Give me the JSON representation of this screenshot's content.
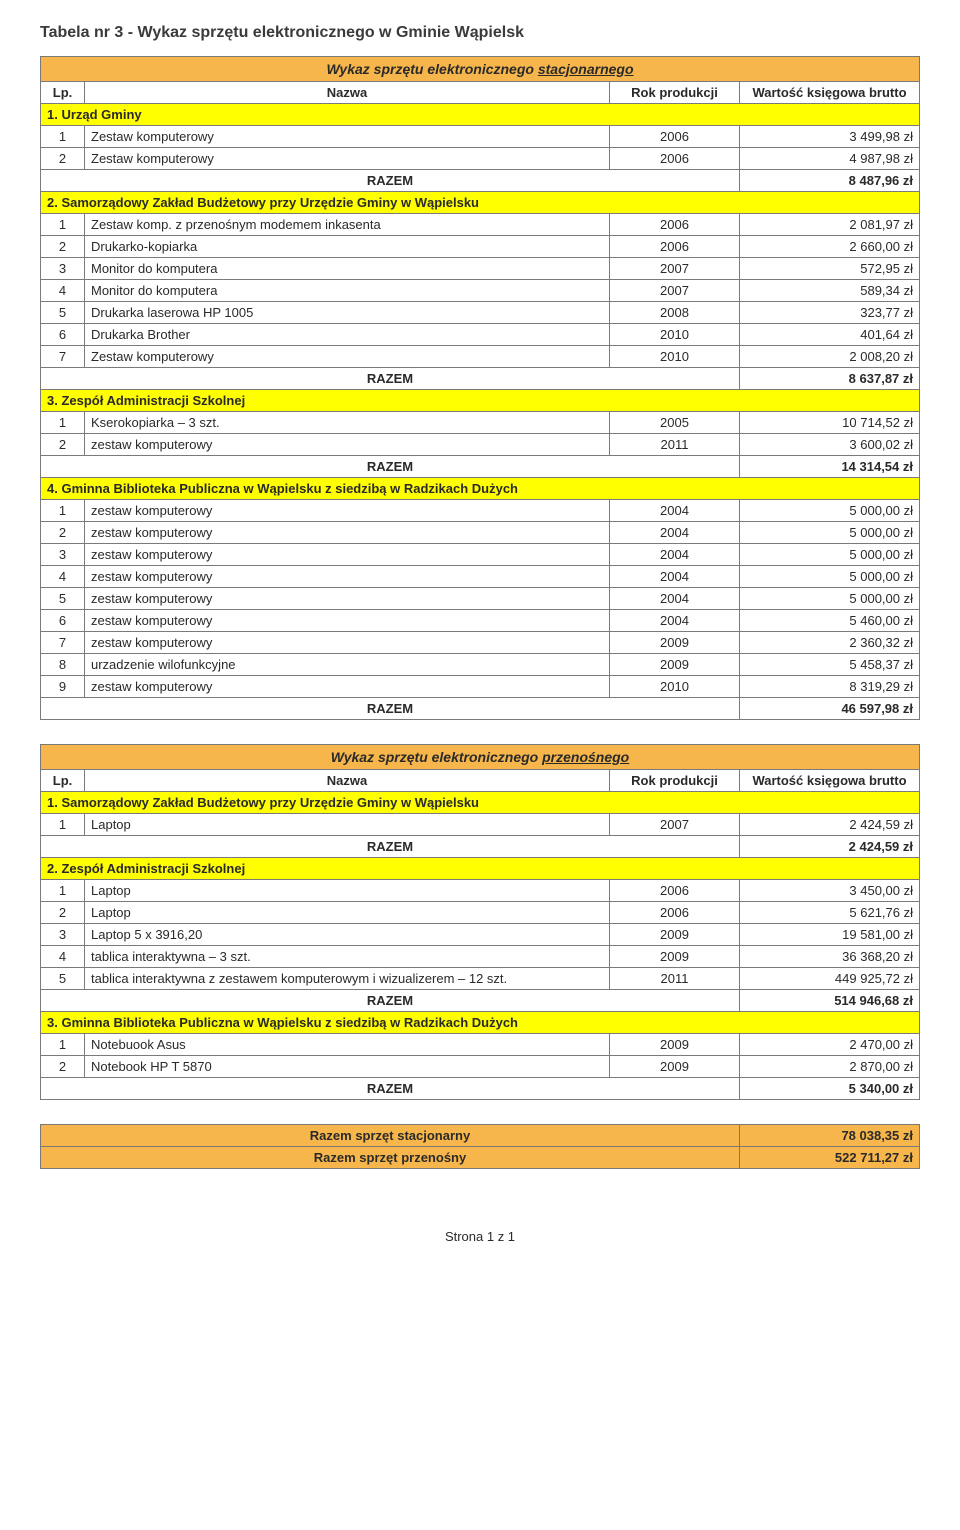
{
  "page": {
    "title": "Tabela nr 3 - Wykaz sprzętu elektronicznego w Gminie Wąpielsk",
    "footer": "Strona 1 z 1"
  },
  "table1": {
    "header_prefix": "Wykaz sprzętu elektronicznego ",
    "header_underlined": "stacjonarnego",
    "cols": {
      "lp": "Lp.",
      "name": "Nazwa",
      "year": "Rok produkcji",
      "val": "Wartość księgowa brutto"
    },
    "razem_label": "RAZEM",
    "sections": [
      {
        "title": "1. Urząd Gminy",
        "rows": [
          {
            "lp": "1",
            "name": "Zestaw komputerowy",
            "year": "2006",
            "val": "3 499,98 zł"
          },
          {
            "lp": "2",
            "name": "Zestaw komputerowy",
            "year": "2006",
            "val": "4 987,98 zł"
          }
        ],
        "razem": "8 487,96 zł"
      },
      {
        "title": "2. Samorządowy Zakład Budżetowy przy Urzędzie Gminy w Wąpielsku",
        "rows": [
          {
            "lp": "1",
            "name": "Zestaw komp. z przenośnym modemem inkasenta",
            "year": "2006",
            "val": "2 081,97 zł"
          },
          {
            "lp": "2",
            "name": "Drukarko-kopiarka",
            "year": "2006",
            "val": "2 660,00 zł"
          },
          {
            "lp": "3",
            "name": "Monitor do komputera",
            "year": "2007",
            "val": "572,95 zł"
          },
          {
            "lp": "4",
            "name": "Monitor do komputera",
            "year": "2007",
            "val": "589,34 zł"
          },
          {
            "lp": "5",
            "name": "Drukarka laserowa HP 1005",
            "year": "2008",
            "val": "323,77 zł"
          },
          {
            "lp": "6",
            "name": "Drukarka Brother",
            "year": "2010",
            "val": "401,64 zł"
          },
          {
            "lp": "7",
            "name": "Zestaw komputerowy",
            "year": "2010",
            "val": "2 008,20 zł"
          }
        ],
        "razem": "8 637,87 zł"
      },
      {
        "title": "3. Zespół Administracji Szkolnej",
        "rows": [
          {
            "lp": "1",
            "name": "Kserokopiarka – 3 szt.",
            "year": "2005",
            "val": "10 714,52 zł"
          },
          {
            "lp": "2",
            "name": "zestaw komputerowy",
            "year": "2011",
            "val": "3 600,02 zł"
          }
        ],
        "razem": "14 314,54 zł"
      },
      {
        "title": "4. Gminna Biblioteka Publiczna w Wąpielsku z siedzibą w Radzikach Dużych",
        "rows": [
          {
            "lp": "1",
            "name": "zestaw komputerowy",
            "year": "2004",
            "val": "5 000,00 zł"
          },
          {
            "lp": "2",
            "name": "zestaw komputerowy",
            "year": "2004",
            "val": "5 000,00 zł"
          },
          {
            "lp": "3",
            "name": "zestaw komputerowy",
            "year": "2004",
            "val": "5 000,00 zł"
          },
          {
            "lp": "4",
            "name": "zestaw komputerowy",
            "year": "2004",
            "val": "5 000,00 zł"
          },
          {
            "lp": "5",
            "name": "zestaw komputerowy",
            "year": "2004",
            "val": "5 000,00 zł"
          },
          {
            "lp": "6",
            "name": "zestaw komputerowy",
            "year": "2004",
            "val": "5 460,00 zł"
          },
          {
            "lp": "7",
            "name": "zestaw komputerowy",
            "year": "2009",
            "val": "2 360,32 zł"
          },
          {
            "lp": "8",
            "name": "urzadzenie wilofunkcyjne",
            "year": "2009",
            "val": "5 458,37 zł"
          },
          {
            "lp": "9",
            "name": "zestaw komputerowy",
            "year": "2010",
            "val": "8 319,29 zł"
          }
        ],
        "razem": "46 597,98 zł"
      }
    ]
  },
  "table2": {
    "header_prefix": "Wykaz sprzętu elektronicznego ",
    "header_underlined": "przenośnego",
    "cols": {
      "lp": "Lp.",
      "name": "Nazwa",
      "year": "Rok produkcji",
      "val": "Wartość księgowa brutto"
    },
    "razem_label": "RAZEM",
    "sections": [
      {
        "title": "1. Samorządowy Zakład Budżetowy przy Urzędzie Gminy w Wąpielsku",
        "rows": [
          {
            "lp": "1",
            "name": "Laptop",
            "year": "2007",
            "val": "2 424,59 zł"
          }
        ],
        "razem": "2 424,59 zł"
      },
      {
        "title": "2. Zespół Administracji Szkolnej",
        "rows": [
          {
            "lp": "1",
            "name": "Laptop",
            "year": "2006",
            "val": "3 450,00 zł"
          },
          {
            "lp": "2",
            "name": "Laptop",
            "year": "2006",
            "val": "5 621,76 zł"
          },
          {
            "lp": "3",
            "name": "Laptop 5 x 3916,20",
            "year": "2009",
            "val": "19 581,00 zł"
          },
          {
            "lp": "4",
            "name": "tablica interaktywna – 3 szt.",
            "year": "2009",
            "val": "36 368,20 zł"
          },
          {
            "lp": "5",
            "name": "tablica interaktywna z zestawem komputerowym i wizualizerem – 12 szt.",
            "year": "2011",
            "val": "449 925,72 zł"
          }
        ],
        "razem": "514 946,68 zł"
      },
      {
        "title": "3. Gminna Biblioteka Publiczna w Wąpielsku z siedzibą w Radzikach Dużych",
        "rows": [
          {
            "lp": "1",
            "name": "Notebuook Asus",
            "year": "2009",
            "val": "2 470,00 zł"
          },
          {
            "lp": "2",
            "name": "Notebook HP T 5870",
            "year": "2009",
            "val": "2 870,00 zł"
          }
        ],
        "razem": "5 340,00 zł"
      }
    ]
  },
  "summary": {
    "rows": [
      {
        "label": "Razem sprzęt stacjonarny",
        "val": "78 038,35 zł"
      },
      {
        "label": "Razem sprzęt przenośny",
        "val": "522 711,27 zł"
      }
    ]
  },
  "colors": {
    "header_orange": "#f7b64b",
    "section_yellow": "#ffff00",
    "border": "#7a7a7a",
    "text": "#2a2a2a"
  }
}
